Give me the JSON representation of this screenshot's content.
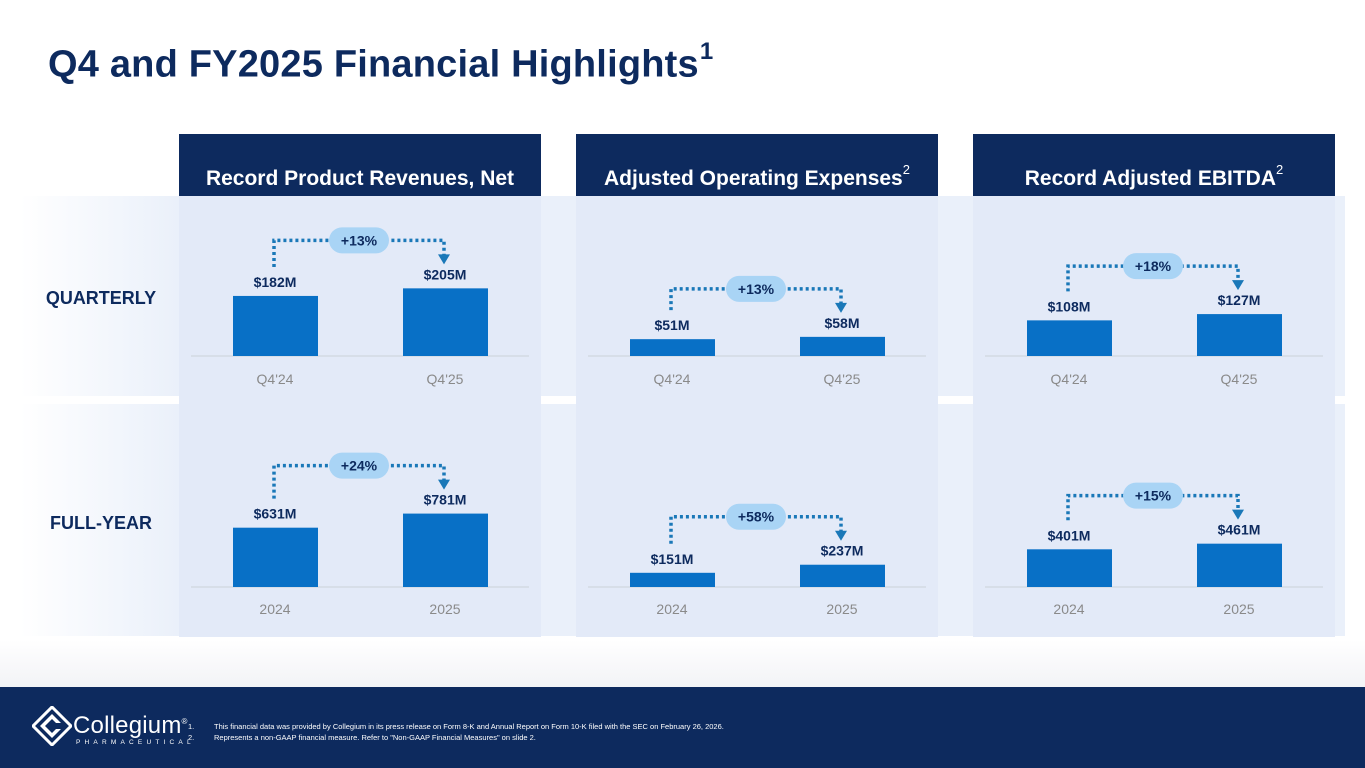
{
  "title": "Q4 and FY2025 Financial Highlights",
  "title_footnote": "1",
  "row_labels": {
    "quarterly": "QUARTERLY",
    "full_year": "FULL-YEAR"
  },
  "colors": {
    "navy": "#0d2a5e",
    "bar": "#0870c6",
    "pill": "#a9d4f5",
    "arrow": "#1a78b8",
    "axis_text": "#8a8a8a"
  },
  "columns": [
    {
      "title": "Record Product Revenues, Net",
      "footnote": ""
    },
    {
      "title": "Adjusted Operating Expenses",
      "footnote": "2"
    },
    {
      "title": "Record Adjusted EBITDA",
      "footnote": "2"
    }
  ],
  "chart_data": [
    {
      "type": "bar",
      "title": "Record Product Revenues, Net",
      "row": "QUARTERLY",
      "unit": "$M",
      "categories": [
        "Q4'24",
        "Q4'25"
      ],
      "values": [
        182,
        205
      ],
      "labels": [
        "$182M",
        "$205M"
      ],
      "change": "+13%",
      "ylim": [
        0,
        230
      ]
    },
    {
      "type": "bar",
      "title": "Adjusted Operating Expenses",
      "row": "QUARTERLY",
      "unit": "$M",
      "categories": [
        "Q4'24",
        "Q4'25"
      ],
      "values": [
        51,
        58
      ],
      "labels": [
        "$51M",
        "$58M"
      ],
      "change": "+13%",
      "ylim": [
        0,
        230
      ]
    },
    {
      "type": "bar",
      "title": "Record Adjusted EBITDA",
      "row": "QUARTERLY",
      "unit": "$M",
      "categories": [
        "Q4'24",
        "Q4'25"
      ],
      "values": [
        108,
        127
      ],
      "labels": [
        "$108M",
        "$127M"
      ],
      "change": "+18%",
      "ylim": [
        0,
        230
      ]
    },
    {
      "type": "bar",
      "title": "Record Product Revenues, Net",
      "row": "FULL-YEAR",
      "unit": "$M",
      "categories": [
        "2024",
        "2025"
      ],
      "values": [
        631,
        781
      ],
      "labels": [
        "$631M",
        "$781M"
      ],
      "change": "+24%",
      "ylim": [
        0,
        1000
      ]
    },
    {
      "type": "bar",
      "title": "Adjusted Operating Expenses",
      "row": "FULL-YEAR",
      "unit": "$M",
      "categories": [
        "2024",
        "2025"
      ],
      "values": [
        151,
        237
      ],
      "labels": [
        "$151M",
        "$237M"
      ],
      "change": "+58%",
      "ylim": [
        0,
        1000
      ]
    },
    {
      "type": "bar",
      "title": "Record Adjusted EBITDA",
      "row": "FULL-YEAR",
      "unit": "$M",
      "categories": [
        "2024",
        "2025"
      ],
      "values": [
        401,
        461
      ],
      "labels": [
        "$401M",
        "$461M"
      ],
      "change": "+15%",
      "ylim": [
        0,
        1000
      ]
    }
  ],
  "footer": {
    "logo_name": "Collegium",
    "logo_mark": "®",
    "logo_sub": "PHARMACEUTICAL",
    "notes": [
      {
        "num": "1.",
        "text": "This financial data was provided by Collegium in its press release on Form 8-K and Annual Report on Form 10-K filed with the SEC on February 26, 2026."
      },
      {
        "num": "2.",
        "text": "Represents a non-GAAP financial measure. Refer to \"Non-GAAP Financial Measures\" on slide 2."
      }
    ]
  }
}
